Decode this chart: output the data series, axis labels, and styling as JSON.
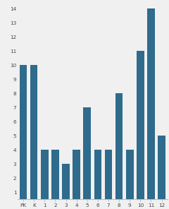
{
  "categories": [
    "PK",
    "K",
    "1",
    "2",
    "3",
    "4",
    "5",
    "6",
    "7",
    "8",
    "9",
    "10",
    "11",
    "12"
  ],
  "values": [
    10,
    10,
    4,
    4,
    3,
    4,
    7,
    4,
    4,
    8,
    4,
    11,
    14,
    5
  ],
  "bar_color": "#2e6b8c",
  "ylim_min": 0.5,
  "ylim_max": 14.5,
  "yticks": [
    1,
    2,
    3,
    4,
    5,
    6,
    7,
    8,
    9,
    10,
    11,
    12,
    13,
    14
  ],
  "background_color": "#f0f0f0",
  "spine_color": "#bbbbbb",
  "tick_fontsize": 5.2,
  "bar_width": 0.7
}
